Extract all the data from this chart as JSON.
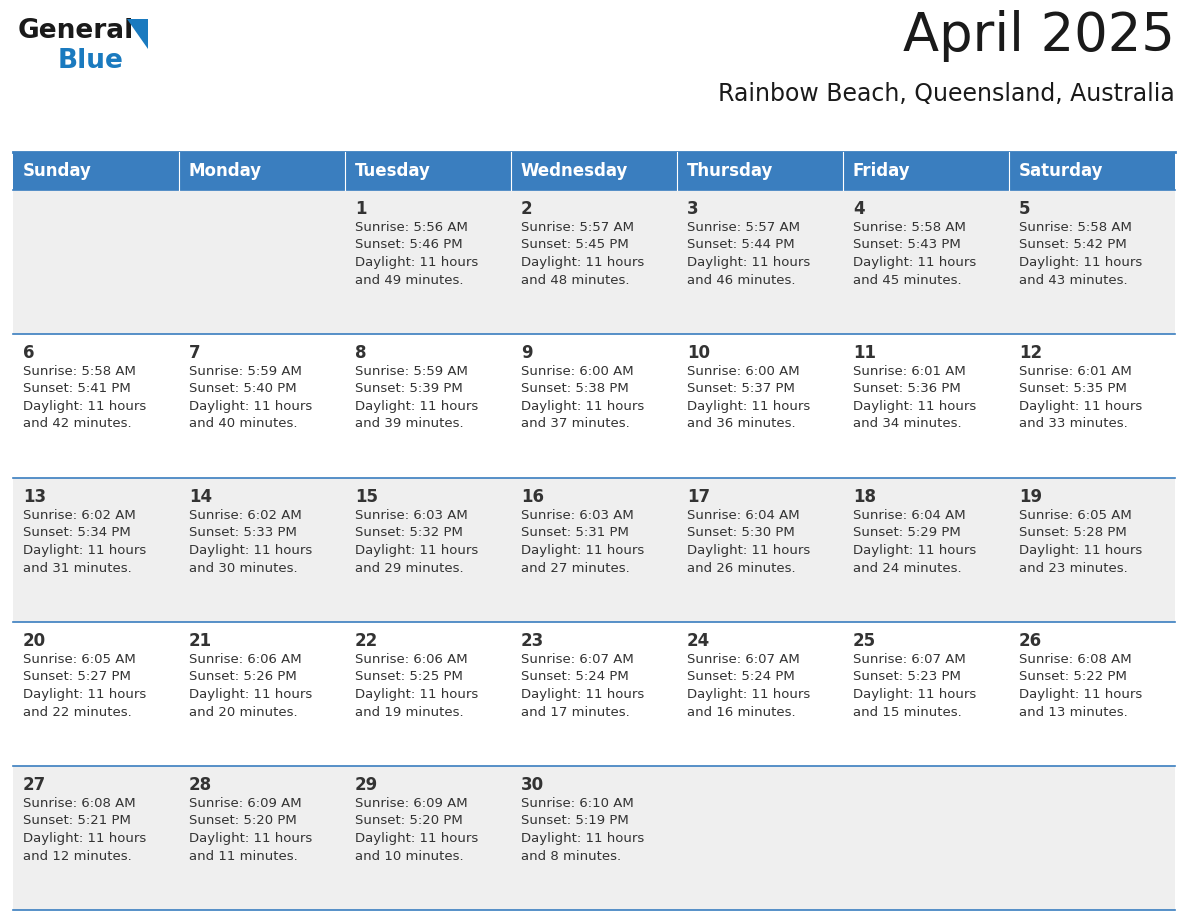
{
  "title": "April 2025",
  "subtitle": "Rainbow Beach, Queensland, Australia",
  "header_bg": "#3A7EBF",
  "header_text_color": "#FFFFFF",
  "row_bg_odd": "#EFEFEF",
  "row_bg_even": "#FFFFFF",
  "day_names": [
    "Sunday",
    "Monday",
    "Tuesday",
    "Wednesday",
    "Thursday",
    "Friday",
    "Saturday"
  ],
  "calendar_data": [
    [
      {
        "day": "",
        "sunrise": "",
        "sunset": "",
        "daylight": ""
      },
      {
        "day": "",
        "sunrise": "",
        "sunset": "",
        "daylight": ""
      },
      {
        "day": "1",
        "sunrise": "5:56 AM",
        "sunset": "5:46 PM",
        "daylight": "11 hours and 49 minutes."
      },
      {
        "day": "2",
        "sunrise": "5:57 AM",
        "sunset": "5:45 PM",
        "daylight": "11 hours and 48 minutes."
      },
      {
        "day": "3",
        "sunrise": "5:57 AM",
        "sunset": "5:44 PM",
        "daylight": "11 hours and 46 minutes."
      },
      {
        "day": "4",
        "sunrise": "5:58 AM",
        "sunset": "5:43 PM",
        "daylight": "11 hours and 45 minutes."
      },
      {
        "day": "5",
        "sunrise": "5:58 AM",
        "sunset": "5:42 PM",
        "daylight": "11 hours and 43 minutes."
      }
    ],
    [
      {
        "day": "6",
        "sunrise": "5:58 AM",
        "sunset": "5:41 PM",
        "daylight": "11 hours and 42 minutes."
      },
      {
        "day": "7",
        "sunrise": "5:59 AM",
        "sunset": "5:40 PM",
        "daylight": "11 hours and 40 minutes."
      },
      {
        "day": "8",
        "sunrise": "5:59 AM",
        "sunset": "5:39 PM",
        "daylight": "11 hours and 39 minutes."
      },
      {
        "day": "9",
        "sunrise": "6:00 AM",
        "sunset": "5:38 PM",
        "daylight": "11 hours and 37 minutes."
      },
      {
        "day": "10",
        "sunrise": "6:00 AM",
        "sunset": "5:37 PM",
        "daylight": "11 hours and 36 minutes."
      },
      {
        "day": "11",
        "sunrise": "6:01 AM",
        "sunset": "5:36 PM",
        "daylight": "11 hours and 34 minutes."
      },
      {
        "day": "12",
        "sunrise": "6:01 AM",
        "sunset": "5:35 PM",
        "daylight": "11 hours and 33 minutes."
      }
    ],
    [
      {
        "day": "13",
        "sunrise": "6:02 AM",
        "sunset": "5:34 PM",
        "daylight": "11 hours and 31 minutes."
      },
      {
        "day": "14",
        "sunrise": "6:02 AM",
        "sunset": "5:33 PM",
        "daylight": "11 hours and 30 minutes."
      },
      {
        "day": "15",
        "sunrise": "6:03 AM",
        "sunset": "5:32 PM",
        "daylight": "11 hours and 29 minutes."
      },
      {
        "day": "16",
        "sunrise": "6:03 AM",
        "sunset": "5:31 PM",
        "daylight": "11 hours and 27 minutes."
      },
      {
        "day": "17",
        "sunrise": "6:04 AM",
        "sunset": "5:30 PM",
        "daylight": "11 hours and 26 minutes."
      },
      {
        "day": "18",
        "sunrise": "6:04 AM",
        "sunset": "5:29 PM",
        "daylight": "11 hours and 24 minutes."
      },
      {
        "day": "19",
        "sunrise": "6:05 AM",
        "sunset": "5:28 PM",
        "daylight": "11 hours and 23 minutes."
      }
    ],
    [
      {
        "day": "20",
        "sunrise": "6:05 AM",
        "sunset": "5:27 PM",
        "daylight": "11 hours and 22 minutes."
      },
      {
        "day": "21",
        "sunrise": "6:06 AM",
        "sunset": "5:26 PM",
        "daylight": "11 hours and 20 minutes."
      },
      {
        "day": "22",
        "sunrise": "6:06 AM",
        "sunset": "5:25 PM",
        "daylight": "11 hours and 19 minutes."
      },
      {
        "day": "23",
        "sunrise": "6:07 AM",
        "sunset": "5:24 PM",
        "daylight": "11 hours and 17 minutes."
      },
      {
        "day": "24",
        "sunrise": "6:07 AM",
        "sunset": "5:24 PM",
        "daylight": "11 hours and 16 minutes."
      },
      {
        "day": "25",
        "sunrise": "6:07 AM",
        "sunset": "5:23 PM",
        "daylight": "11 hours and 15 minutes."
      },
      {
        "day": "26",
        "sunrise": "6:08 AM",
        "sunset": "5:22 PM",
        "daylight": "11 hours and 13 minutes."
      }
    ],
    [
      {
        "day": "27",
        "sunrise": "6:08 AM",
        "sunset": "5:21 PM",
        "daylight": "11 hours and 12 minutes."
      },
      {
        "day": "28",
        "sunrise": "6:09 AM",
        "sunset": "5:20 PM",
        "daylight": "11 hours and 11 minutes."
      },
      {
        "day": "29",
        "sunrise": "6:09 AM",
        "sunset": "5:20 PM",
        "daylight": "11 hours and 10 minutes."
      },
      {
        "day": "30",
        "sunrise": "6:10 AM",
        "sunset": "5:19 PM",
        "daylight": "11 hours and 8 minutes."
      },
      {
        "day": "",
        "sunrise": "",
        "sunset": "",
        "daylight": ""
      },
      {
        "day": "",
        "sunrise": "",
        "sunset": "",
        "daylight": ""
      },
      {
        "day": "",
        "sunrise": "",
        "sunset": "",
        "daylight": ""
      }
    ]
  ],
  "logo_general_color": "#1a1a1a",
  "logo_blue_color": "#1a7abf",
  "logo_triangle_color": "#1a7abf",
  "cell_text_color": "#333333",
  "divider_color": "#3A7EBF",
  "title_fontsize": 38,
  "subtitle_fontsize": 17,
  "day_name_fontsize": 12,
  "day_num_fontsize": 12,
  "cell_fontsize": 9.5
}
